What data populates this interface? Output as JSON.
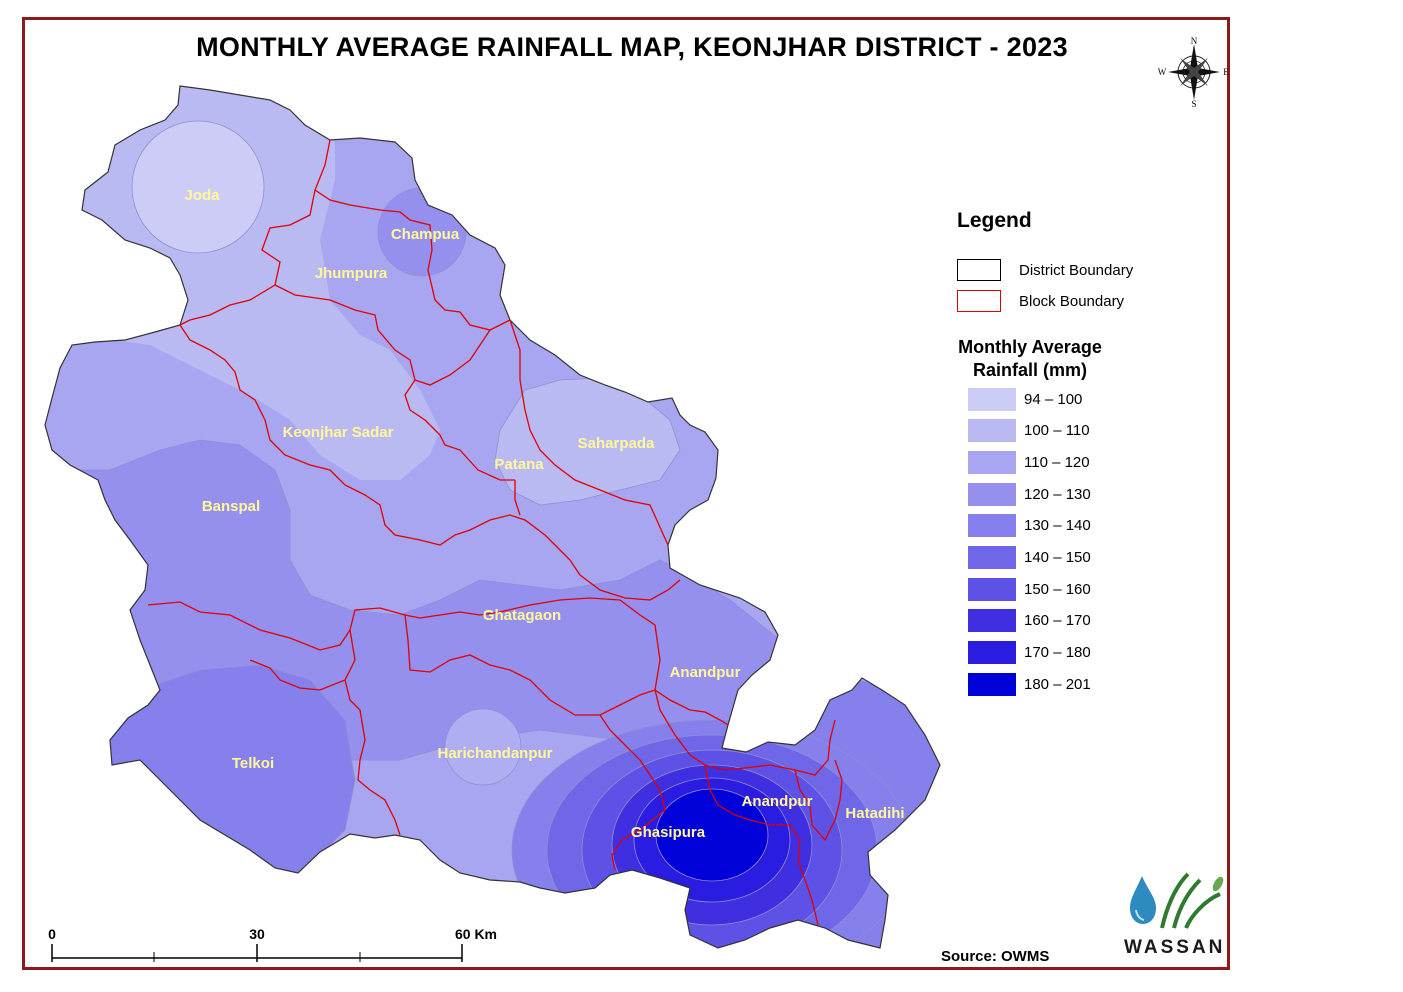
{
  "title": "MONTHLY AVERAGE RAINFALL MAP, KEONJHAR DISTRICT - 2023",
  "north_arrow": {
    "n": "N",
    "s": "S",
    "e": "E",
    "w": "W"
  },
  "legend": {
    "title": "Legend",
    "district_boundary": "District Boundary",
    "block_boundary": "Block Boundary",
    "rainfall_title_line1": "Monthly Average",
    "rainfall_title_line2": "Rainfall (mm)",
    "classes": [
      {
        "label": "94 – 100",
        "color": "#ccccf7"
      },
      {
        "label": "100 – 110",
        "color": "#babaf3"
      },
      {
        "label": "110 – 120",
        "color": "#a8a6f0"
      },
      {
        "label": "120 – 130",
        "color": "#9590ee"
      },
      {
        "label": "130 – 140",
        "color": "#8580ec"
      },
      {
        "label": "140 – 150",
        "color": "#7066e8"
      },
      {
        "label": "150 – 160",
        "color": "#5e52e6"
      },
      {
        "label": "160 – 170",
        "color": "#3f2fe0"
      },
      {
        "label": "170 – 180",
        "color": "#2a1ce0"
      },
      {
        "label": "180 – 201",
        "color": "#0000d9"
      }
    ]
  },
  "blocks": {
    "joda": "Joda",
    "champua": "Champua",
    "jhumpura": "Jhumpura",
    "keonjhar_sadar": "Keonjhar Sadar",
    "saharpada": "Saharpada",
    "patana": "Patana",
    "banspal": "Banspal",
    "ghatagaon": "Ghatagaon",
    "anandpur": "Anandpur",
    "harichandanpur": "Harichandanpur",
    "telkoi": "Telkoi",
    "anandpur_2": "Anandpur",
    "hatadihi": "Hatadihi",
    "ghasipura": "Ghasipura"
  },
  "scale_bar": {
    "tick_0": "0",
    "tick_30": "30",
    "tick_60": "60 Km"
  },
  "source": "Source: OWMS",
  "logo_text": "WASSAN",
  "colors": {
    "frame": "#8b1a1a",
    "block_boundary": "#e00000",
    "label": "#fff89a"
  }
}
